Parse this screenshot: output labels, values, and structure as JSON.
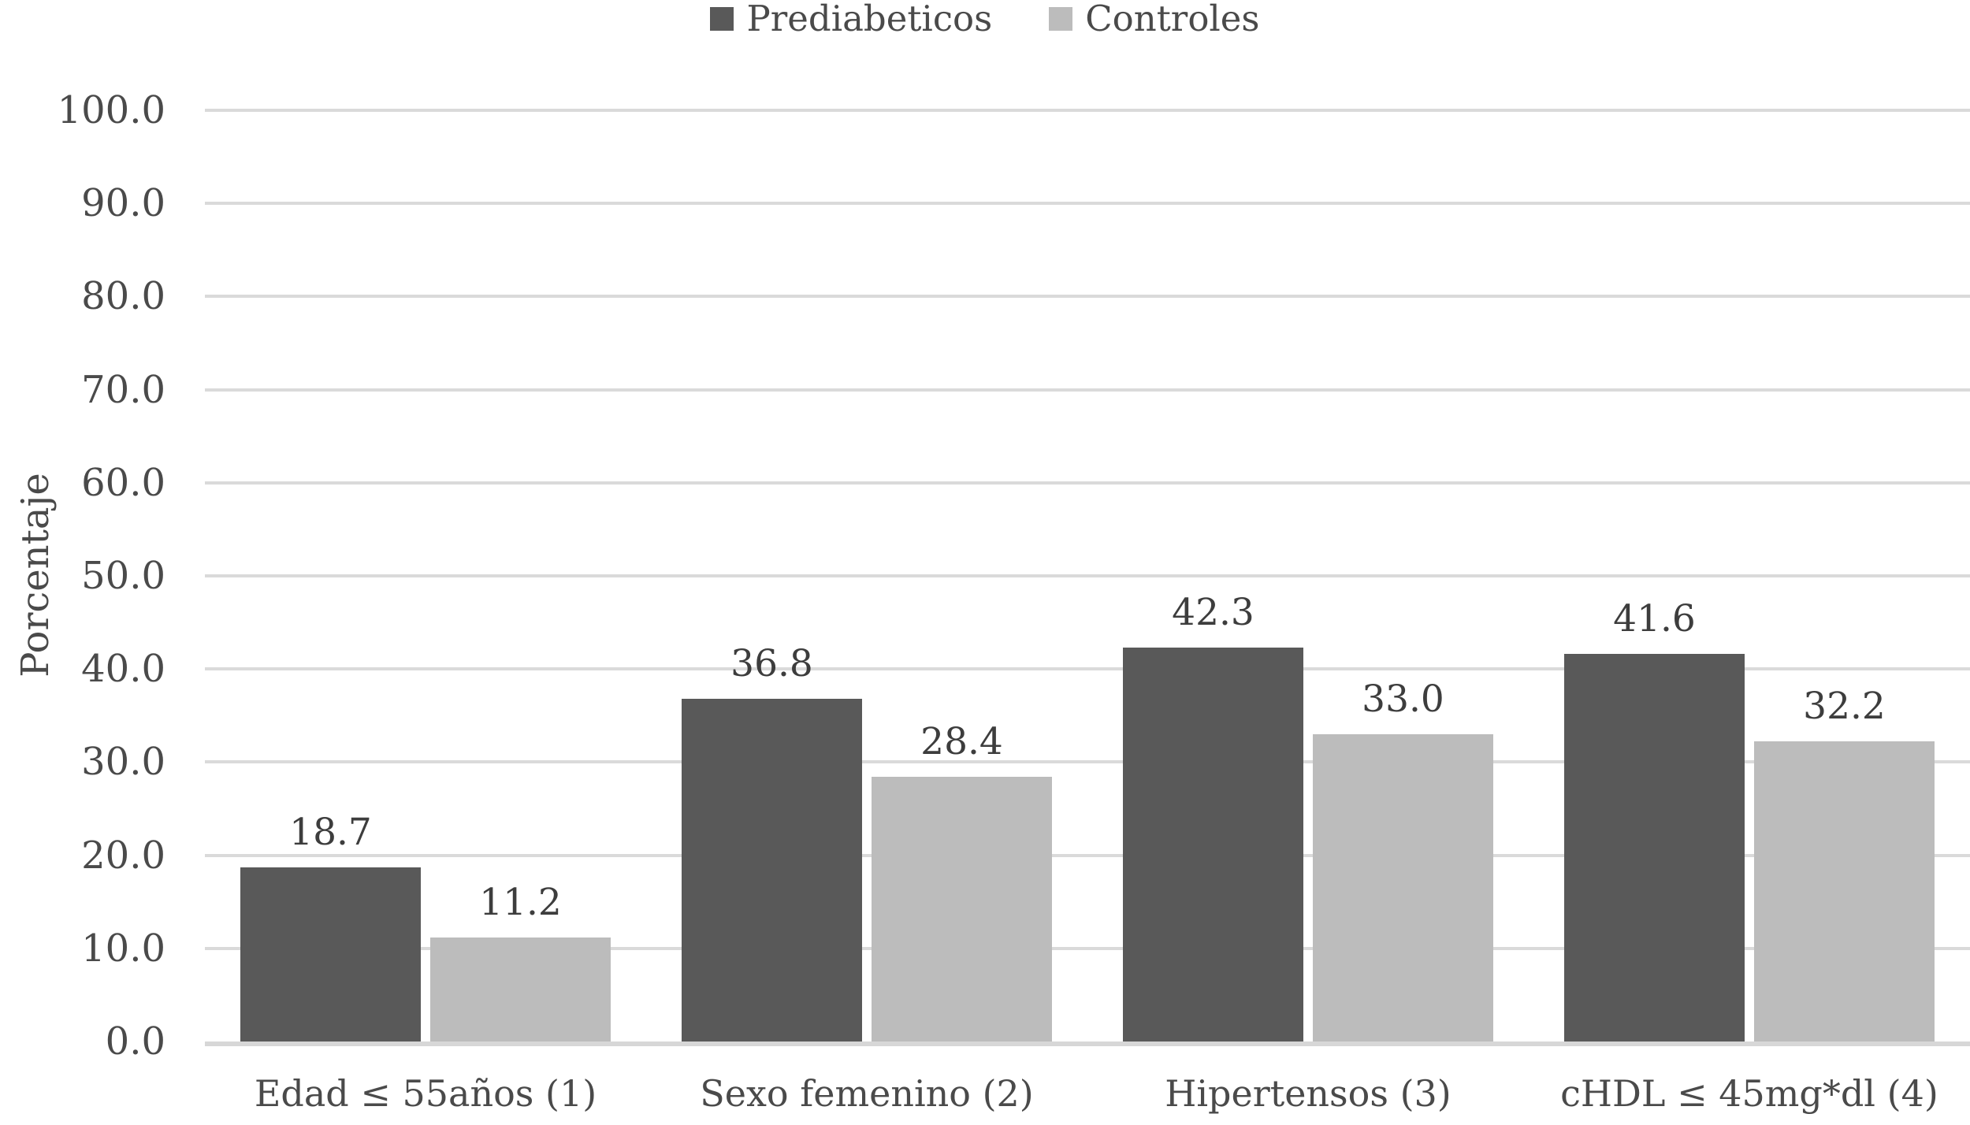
{
  "chart_data": {
    "type": "bar",
    "title": "",
    "categories": [
      "Edad ≤ 55años (1)",
      "Sexo femenino (2)",
      "Hipertensos (3)",
      "cHDL ≤ 45mg*dl (4)"
    ],
    "series": [
      {
        "name": "Prediabeticos",
        "color": "#595959",
        "values": [
          18.7,
          36.8,
          42.3,
          41.6
        ]
      },
      {
        "name": "Controles",
        "color": "#bcbcbc",
        "values": [
          11.2,
          28.4,
          33.0,
          32.2
        ]
      }
    ],
    "xlabel": "",
    "ylabel": "Porcentaje",
    "ylim": [
      0,
      100
    ],
    "ytick_step": 10,
    "ytick_decimals": 1,
    "value_label_decimals": 1,
    "grid": true,
    "legend_position": "top-center"
  },
  "colors": {
    "background": "#ffffff",
    "text": "#4a4a4a",
    "gridline": "#dadada",
    "axis_line": "#d7d7d7",
    "bar_dark": "#595959",
    "bar_light": "#bcbcbc"
  }
}
